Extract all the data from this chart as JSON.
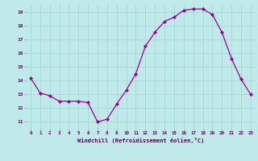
{
  "x": [
    0,
    1,
    2,
    3,
    4,
    5,
    6,
    7,
    8,
    9,
    10,
    11,
    12,
    13,
    14,
    15,
    16,
    17,
    18,
    19,
    20,
    21,
    22,
    23
  ],
  "y": [
    14.2,
    13.1,
    12.9,
    12.5,
    12.5,
    12.5,
    12.4,
    11.0,
    11.2,
    12.3,
    13.3,
    14.5,
    16.5,
    17.5,
    18.3,
    18.6,
    19.1,
    19.2,
    19.2,
    18.8,
    17.5,
    15.6,
    14.1,
    13.0
  ],
  "xlabel": "Windchill (Refroidissement éolien,°C)",
  "ylim": [
    10.5,
    19.5
  ],
  "xlim": [
    -0.5,
    23.5
  ],
  "yticks": [
    11,
    12,
    13,
    14,
    15,
    16,
    17,
    18,
    19
  ],
  "xticks": [
    0,
    1,
    2,
    3,
    4,
    5,
    6,
    7,
    8,
    9,
    10,
    11,
    12,
    13,
    14,
    15,
    16,
    17,
    18,
    19,
    20,
    21,
    22,
    23
  ],
  "line_color": "#990099",
  "marker_color": "#990099",
  "bg_color": "#c0eaea",
  "grid_color": "#a8d8d8",
  "tick_label_color": "#660066",
  "xlabel_color": "#550055"
}
